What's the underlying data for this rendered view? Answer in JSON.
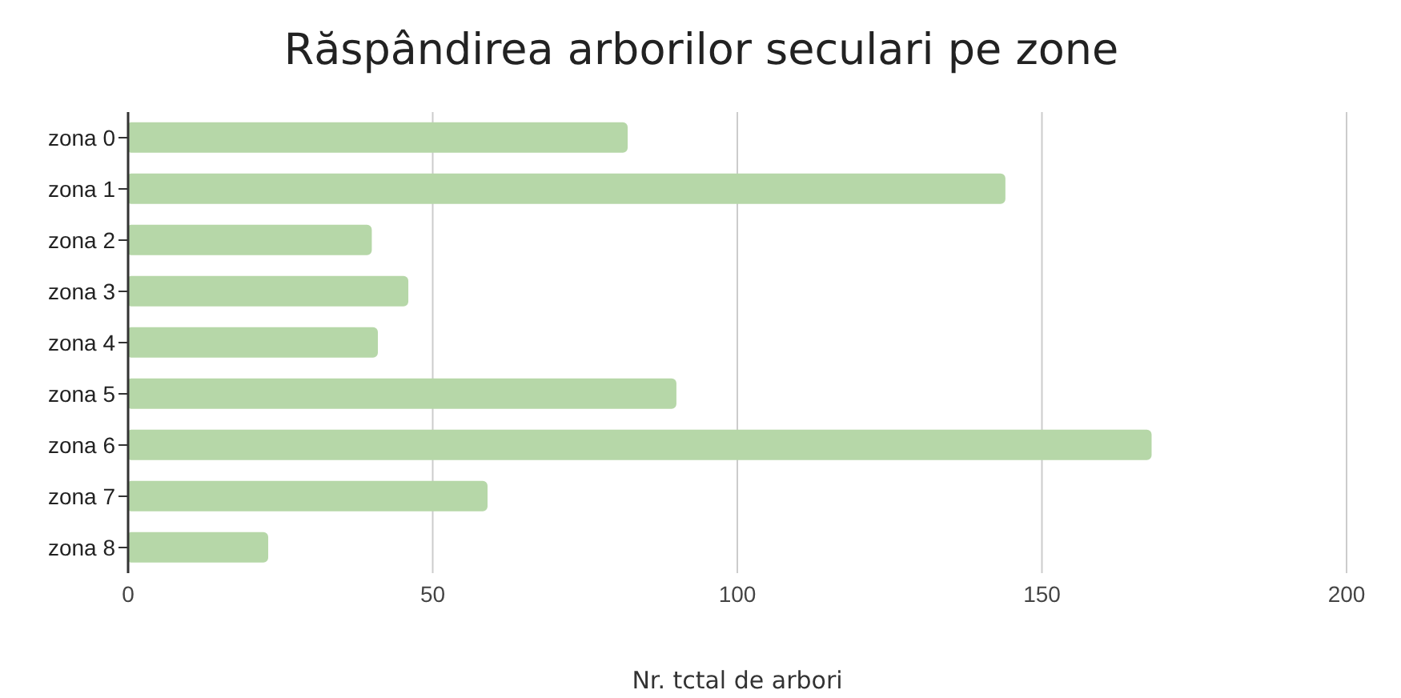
{
  "chart_data": {
    "type": "bar",
    "orientation": "horizontal",
    "title": "Răspândirea arborilor seculari pe zone",
    "xlabel": "Nr. tctal de arbori",
    "categories": [
      "zona 0",
      "zona 1",
      "zona 2",
      "zona 3",
      "zona 4",
      "zona 5",
      "zona 6",
      "zona 7",
      "zona 8"
    ],
    "values": [
      82,
      144,
      40,
      46,
      41,
      90,
      168,
      59,
      23
    ],
    "color": "#b6d7a8",
    "xlim": [
      0,
      200
    ],
    "xticks": [
      0,
      50,
      100,
      150,
      200
    ],
    "grid": "x",
    "legend": false
  }
}
